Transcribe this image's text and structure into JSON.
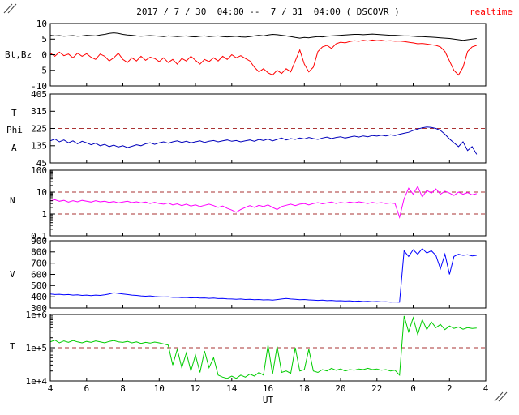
{
  "header": {
    "title": "2017 / 7 / 30  04:00 --  7 / 31  04:00 ( DSCOVR )",
    "realtime_label": "realtime",
    "realtime_color": "#ff0000"
  },
  "footer": {
    "x_axis_label": "UT"
  },
  "chart_data": {
    "type": "line",
    "title": "2017 / 7 / 30  04:00 --  7 / 31  04:00 ( DSCOVR )",
    "x_range": [
      4,
      28
    ],
    "x_start": 4,
    "x_step": 0.25,
    "x_tick_positions": [
      4,
      6,
      8,
      10,
      12,
      14,
      16,
      18,
      20,
      22,
      24,
      26,
      28
    ],
    "x_tick_labels": [
      "4",
      "6",
      "8",
      "10",
      "12",
      "14",
      "16",
      "18",
      "20",
      "22",
      "0",
      "2",
      "4"
    ],
    "colors": {
      "threshold": "#aa3333",
      "axis": "#000000"
    },
    "panels": [
      {
        "id": "magnetic-field",
        "side_labels": [
          "Bt,Bz"
        ],
        "scale": "linear",
        "ylim": [
          -10,
          10
        ],
        "y_tick_values": [
          10,
          5,
          0,
          -5,
          -10
        ],
        "y_tick_labels": [
          "10",
          "5",
          "0",
          "-5",
          "-10"
        ],
        "thresholds": [],
        "series": [
          {
            "name": "Bt",
            "color": "#000000",
            "values": [
              6.2,
              6.0,
              6.1,
              5.9,
              6.0,
              6.1,
              5.9,
              6.0,
              6.2,
              6.1,
              6.0,
              6.3,
              6.5,
              6.8,
              7.0,
              6.8,
              6.5,
              6.3,
              6.2,
              6.0,
              5.9,
              6.0,
              6.1,
              6.0,
              5.9,
              5.8,
              6.0,
              5.9,
              5.8,
              5.9,
              6.0,
              5.8,
              5.7,
              5.9,
              6.0,
              5.8,
              5.9,
              6.0,
              5.8,
              5.7,
              5.8,
              5.9,
              5.7,
              5.6,
              5.8,
              6.0,
              6.2,
              6.0,
              6.3,
              6.5,
              6.4,
              6.2,
              6.0,
              5.8,
              5.5,
              5.3,
              5.5,
              5.4,
              5.6,
              5.8,
              5.7,
              5.9,
              6.0,
              6.1,
              6.2,
              6.3,
              6.4,
              6.5,
              6.5,
              6.4,
              6.5,
              6.6,
              6.5,
              6.4,
              6.3,
              6.2,
              6.2,
              6.1,
              6.0,
              6.0,
              5.9,
              5.8,
              5.8,
              5.7,
              5.6,
              5.5,
              5.4,
              5.3,
              5.2,
              5.0,
              4.8,
              4.6,
              4.8,
              5.0,
              5.2
            ]
          },
          {
            "name": "Bz",
            "color": "#ff0000",
            "values": [
              0.5,
              -0.5,
              0.8,
              -0.3,
              0.2,
              -1.0,
              0.5,
              -0.5,
              0.3,
              -0.8,
              -1.5,
              0.2,
              -0.5,
              -2.0,
              -1.0,
              0.5,
              -1.5,
              -2.5,
              -1.0,
              -2.0,
              -0.5,
              -1.8,
              -0.8,
              -1.2,
              -2.2,
              -1.0,
              -2.5,
              -1.5,
              -3.0,
              -1.2,
              -2.0,
              -0.5,
              -1.8,
              -3.0,
              -1.5,
              -2.2,
              -1.0,
              -2.0,
              -0.5,
              -1.5,
              0.0,
              -1.0,
              -0.3,
              -1.2,
              -2.0,
              -4.0,
              -5.5,
              -4.5,
              -5.8,
              -6.5,
              -5.0,
              -6.0,
              -4.5,
              -5.5,
              -2.0,
              1.5,
              -3.0,
              -5.5,
              -4.0,
              1.0,
              2.5,
              3.0,
              2.0,
              3.5,
              4.0,
              3.8,
              4.2,
              4.5,
              4.3,
              4.6,
              4.4,
              4.7,
              4.5,
              4.6,
              4.4,
              4.5,
              4.3,
              4.4,
              4.2,
              4.0,
              3.8,
              3.5,
              3.6,
              3.4,
              3.2,
              3.0,
              2.5,
              1.0,
              -2.0,
              -5.0,
              -6.5,
              -4.0,
              1.0,
              2.5,
              3.0
            ]
          }
        ]
      },
      {
        "id": "phi-angle",
        "side_labels": [
          "T",
          "Phi",
          "A"
        ],
        "scale": "linear",
        "ylim": [
          45,
          405
        ],
        "y_tick_values": [
          405,
          315,
          225,
          135,
          45
        ],
        "y_tick_labels": [
          "405",
          "315",
          "225",
          "135",
          "45"
        ],
        "thresholds": [
          225
        ],
        "series": [
          {
            "name": "Phi",
            "color": "#0000bb",
            "values": [
              160,
              170,
              155,
              165,
              150,
              160,
              145,
              158,
              150,
              140,
              148,
              135,
              142,
              130,
              138,
              128,
              135,
              125,
              132,
              140,
              135,
              145,
              150,
              142,
              150,
              155,
              148,
              155,
              160,
              152,
              158,
              150,
              155,
              160,
              152,
              158,
              162,
              155,
              160,
              165,
              158,
              162,
              155,
              160,
              165,
              158,
              168,
              162,
              170,
              160,
              168,
              175,
              165,
              172,
              168,
              175,
              170,
              178,
              172,
              168,
              175,
              180,
              172,
              178,
              182,
              175,
              180,
              185,
              180,
              186,
              182,
              188,
              185,
              190,
              186,
              192,
              188,
              195,
              200,
              205,
              215,
              222,
              228,
              232,
              230,
              225,
              215,
              195,
              170,
              150,
              130,
              155,
              110,
              130,
              90
            ]
          }
        ]
      },
      {
        "id": "density",
        "side_labels": [
          "N"
        ],
        "scale": "log",
        "ylim": [
          0.1,
          100
        ],
        "y_tick_values": [
          100,
          10,
          1,
          0.1
        ],
        "y_tick_labels": [
          "100",
          "10",
          "1",
          "0.1"
        ],
        "thresholds": [
          10,
          1
        ],
        "series": [
          {
            "name": "N",
            "color": "#ff00ff",
            "values": [
              4.0,
              4.5,
              3.8,
              4.2,
              3.5,
              4.0,
              3.6,
              4.2,
              3.8,
              3.5,
              4.0,
              3.6,
              3.8,
              3.4,
              3.7,
              3.2,
              3.5,
              3.8,
              3.3,
              3.6,
              3.2,
              3.5,
              3.0,
              3.4,
              3.0,
              2.8,
              3.2,
              2.6,
              2.9,
              2.4,
              2.8,
              2.3,
              2.6,
              2.2,
              2.5,
              2.8,
              2.4,
              2.0,
              2.3,
              1.8,
              1.5,
              1.2,
              1.6,
              2.0,
              2.4,
              2.0,
              2.5,
              2.2,
              2.6,
              2.0,
              1.6,
              2.2,
              2.5,
              2.8,
              2.4,
              2.8,
              3.0,
              2.6,
              3.0,
              3.3,
              2.9,
              3.2,
              3.5,
              3.0,
              3.4,
              3.1,
              3.5,
              3.2,
              3.6,
              3.3,
              3.0,
              3.4,
              3.1,
              3.3,
              3.0,
              3.2,
              3.0,
              0.7,
              5.0,
              15.0,
              8.0,
              18.0,
              6.0,
              12.0,
              9.0,
              14.0,
              8.0,
              11.0,
              9.0,
              7.0,
              10.0,
              8.0,
              9.5,
              7.5,
              8.5
            ]
          }
        ]
      },
      {
        "id": "velocity",
        "side_labels": [
          "V"
        ],
        "scale": "linear",
        "ylim": [
          300,
          900
        ],
        "y_tick_values": [
          900,
          800,
          700,
          600,
          500,
          400,
          300
        ],
        "y_tick_labels": [
          "900",
          "800",
          "700",
          "600",
          "500",
          "400",
          "300"
        ],
        "thresholds": [],
        "series": [
          {
            "name": "V",
            "color": "#0000ff",
            "values": [
              425,
              420,
              422,
              418,
              420,
              415,
              418,
              412,
              415,
              410,
              415,
              412,
              418,
              425,
              435,
              430,
              425,
              420,
              415,
              412,
              408,
              405,
              408,
              402,
              400,
              398,
              400,
              395,
              396,
              392,
              394,
              390,
              392,
              388,
              390,
              386,
              388,
              384,
              385,
              382,
              380,
              378,
              380,
              376,
              378,
              374,
              376,
              372,
              374,
              370,
              375,
              380,
              385,
              380,
              378,
              374,
              376,
              372,
              370,
              368,
              370,
              366,
              368,
              364,
              365,
              362,
              364,
              360,
              362,
              358,
              360,
              356,
              358,
              355,
              356,
              353,
              354,
              352,
              810,
              760,
              820,
              780,
              830,
              790,
              810,
              770,
              650,
              780,
              600,
              760,
              780,
              770,
              775,
              765,
              770
            ]
          }
        ]
      },
      {
        "id": "temperature",
        "side_labels": [
          "T"
        ],
        "scale": "log",
        "ylim": [
          10000,
          1000000
        ],
        "y_tick_values": [
          1000000,
          100000,
          10000
        ],
        "y_tick_labels": [
          "1e+6",
          "1e+5",
          "1e+4"
        ],
        "thresholds": [
          100000
        ],
        "series": [
          {
            "name": "T",
            "color": "#00cc00",
            "values": [
              150000,
              170000,
              140000,
              160000,
              145000,
              165000,
              150000,
              140000,
              155000,
              145000,
              160000,
              150000,
              140000,
              155000,
              165000,
              150000,
              145000,
              155000,
              140000,
              150000,
              135000,
              145000,
              138000,
              148000,
              140000,
              130000,
              120000,
              30000,
              90000,
              25000,
              70000,
              20000,
              60000,
              18000,
              80000,
              25000,
              50000,
              15000,
              13000,
              12000,
              14000,
              12000,
              15000,
              13000,
              16000,
              14000,
              18000,
              15000,
              120000,
              16000,
              110000,
              18000,
              20000,
              17000,
              100000,
              20000,
              22000,
              90000,
              20000,
              18000,
              22000,
              20000,
              24000,
              21000,
              23000,
              20000,
              22000,
              21000,
              23000,
              22000,
              24000,
              22000,
              23000,
              21000,
              22000,
              20000,
              21000,
              15000,
              900000,
              300000,
              800000,
              250000,
              700000,
              350000,
              600000,
              400000,
              500000,
              350000,
              450000,
              380000,
              420000,
              360000,
              400000,
              380000,
              390000
            ]
          }
        ]
      }
    ]
  }
}
